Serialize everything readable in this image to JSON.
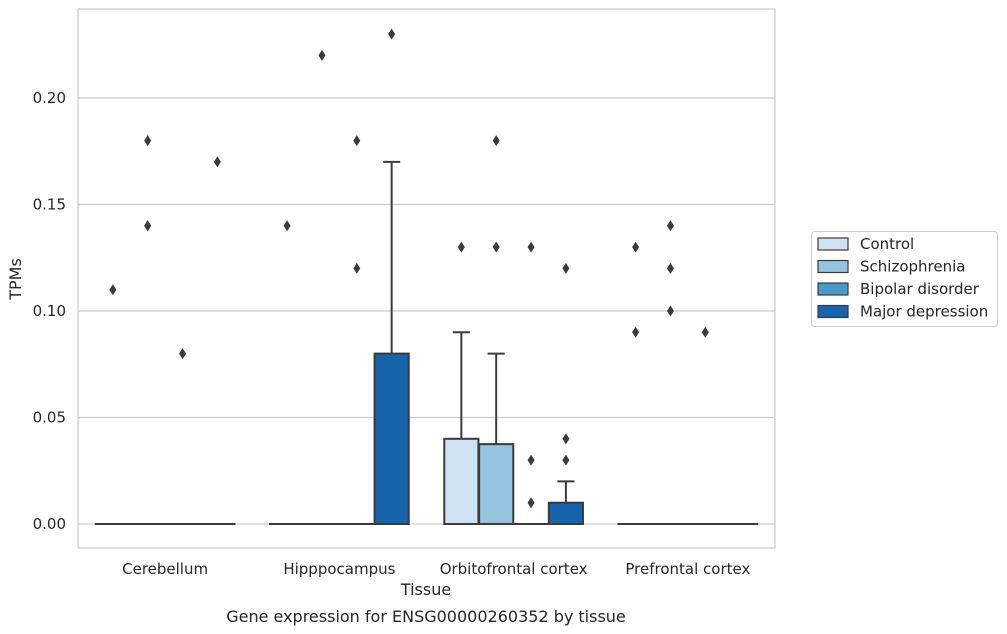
{
  "chart_data": {
    "type": "box",
    "title": "",
    "caption": "Gene expression for ENSG00000260352 by tissue",
    "xlabel": "Tissue",
    "ylabel": "TPMs",
    "ylim": [
      -0.011,
      0.242
    ],
    "yticks": [
      0.0,
      0.05,
      0.1,
      0.15,
      0.2
    ],
    "ytick_labels": [
      "0.00",
      "0.05",
      "0.10",
      "0.15",
      "0.20"
    ],
    "grid": "horizontal",
    "legend": {
      "placement": "outside-right"
    },
    "categories": [
      "Cerebellum",
      "Hipppocampus",
      "Orbitofrontal cortex",
      "Prefrontal cortex"
    ],
    "series": [
      {
        "name": "Control",
        "color": "#d0e1f2",
        "boxes": [
          {
            "q1": 0,
            "median": 0,
            "q3": 0,
            "whislo": 0,
            "whishi": 0,
            "fliers": [
              0.11
            ]
          },
          {
            "q1": 0,
            "median": 0,
            "q3": 0,
            "whislo": 0,
            "whishi": 0,
            "fliers": [
              0.14
            ]
          },
          {
            "q1": 0,
            "median": 0,
            "q3": 0.04,
            "whislo": 0,
            "whishi": 0.09,
            "fliers": [
              0.13
            ]
          },
          {
            "q1": 0,
            "median": 0,
            "q3": 0,
            "whislo": 0,
            "whishi": 0,
            "fliers": [
              0.09,
              0.13
            ]
          }
        ]
      },
      {
        "name": "Schizophrenia",
        "color": "#94c4df",
        "boxes": [
          {
            "q1": 0,
            "median": 0,
            "q3": 0,
            "whislo": 0,
            "whishi": 0,
            "fliers": [
              0.14,
              0.14,
              0.18
            ]
          },
          {
            "q1": 0,
            "median": 0,
            "q3": 0,
            "whislo": 0,
            "whishi": 0,
            "fliers": [
              0.22
            ]
          },
          {
            "q1": 0,
            "median": 0,
            "q3": 0.0375,
            "whislo": 0,
            "whishi": 0.08,
            "fliers": [
              0.13,
              0.18
            ]
          },
          {
            "q1": 0,
            "median": 0,
            "q3": 0,
            "whislo": 0,
            "whishi": 0,
            "fliers": [
              0.1,
              0.12,
              0.14
            ]
          }
        ]
      },
      {
        "name": "Bipolar disorder",
        "color": "#4a98c9",
        "boxes": [
          {
            "q1": 0,
            "median": 0,
            "q3": 0,
            "whislo": 0,
            "whishi": 0,
            "fliers": [
              0.08
            ]
          },
          {
            "q1": 0,
            "median": 0,
            "q3": 0,
            "whislo": 0,
            "whishi": 0,
            "fliers": [
              0.12,
              0.18
            ]
          },
          {
            "q1": 0,
            "median": 0,
            "q3": 0,
            "whislo": 0,
            "whishi": 0,
            "fliers": [
              0.01,
              0.03,
              0.13
            ]
          },
          {
            "q1": 0,
            "median": 0,
            "q3": 0,
            "whislo": 0,
            "whishi": 0,
            "fliers": [
              0.09
            ]
          }
        ]
      },
      {
        "name": "Major depression",
        "color": "#1764ab",
        "boxes": [
          {
            "q1": 0,
            "median": 0,
            "q3": 0,
            "whislo": 0,
            "whishi": 0,
            "fliers": [
              0.17
            ]
          },
          {
            "q1": 0,
            "median": 0,
            "q3": 0.08,
            "whislo": 0,
            "whishi": 0.17,
            "fliers": [
              0.23
            ]
          },
          {
            "q1": 0,
            "median": 0,
            "q3": 0.01,
            "whislo": 0,
            "whishi": 0.02,
            "fliers": [
              0.03,
              0.04,
              0.12
            ]
          },
          {
            "q1": 0,
            "median": 0,
            "q3": 0,
            "whislo": 0,
            "whishi": 0,
            "fliers": []
          }
        ]
      }
    ]
  }
}
